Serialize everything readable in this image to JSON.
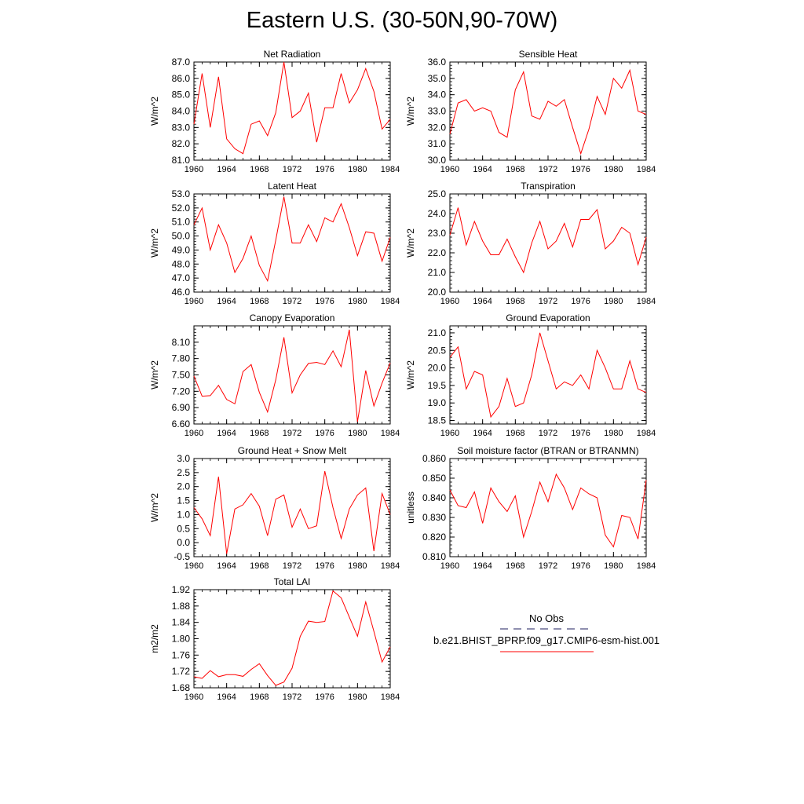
{
  "title": "Eastern U.S. (30-50N,90-70W)",
  "chart_data": [
    {
      "type": "line",
      "title": "Net Radiation",
      "ylabel": "W/m^2",
      "ylim": [
        81.0,
        87.0
      ],
      "yticks": [
        "81.0",
        "82.0",
        "83.0",
        "84.0",
        "85.0",
        "86.0",
        "87.0"
      ],
      "xlim": [
        1960,
        1984
      ],
      "xticks": [
        "1960",
        "1964",
        "1968",
        "1972",
        "1976",
        "1980",
        "1984"
      ],
      "series": [
        {
          "name": "b.e21.BHIST_BPRP.f09_g17.CMIP6-esm-hist.001",
          "color": "#ff0000",
          "x": [
            1960,
            1961,
            1962,
            1963,
            1964,
            1965,
            1966,
            1967,
            1968,
            1969,
            1970,
            1971,
            1972,
            1973,
            1974,
            1975,
            1976,
            1977,
            1978,
            1979,
            1980,
            1981,
            1982,
            1983,
            1984
          ],
          "y": [
            83.2,
            86.3,
            83.0,
            86.1,
            82.3,
            81.7,
            81.4,
            83.2,
            83.4,
            82.5,
            83.9,
            87.0,
            83.6,
            84.0,
            85.1,
            82.1,
            84.2,
            84.2,
            86.3,
            84.5,
            85.3,
            86.6,
            85.2,
            82.9,
            83.5
          ]
        }
      ]
    },
    {
      "type": "line",
      "title": "Sensible Heat",
      "ylabel": "W/m^2",
      "ylim": [
        30.0,
        36.0
      ],
      "yticks": [
        "30.0",
        "31.0",
        "32.0",
        "33.0",
        "34.0",
        "35.0",
        "36.0"
      ],
      "xlim": [
        1960,
        1984
      ],
      "xticks": [
        "1960",
        "1964",
        "1968",
        "1972",
        "1976",
        "1980",
        "1984"
      ],
      "series": [
        {
          "name": "b.e21.BHIST_BPRP.f09_g17.CMIP6-esm-hist.001",
          "color": "#ff0000",
          "x": [
            1960,
            1961,
            1962,
            1963,
            1964,
            1965,
            1966,
            1967,
            1968,
            1969,
            1970,
            1971,
            1972,
            1973,
            1974,
            1975,
            1976,
            1977,
            1978,
            1979,
            1980,
            1981,
            1982,
            1983,
            1984
          ],
          "y": [
            31.6,
            33.5,
            33.7,
            33.0,
            33.2,
            33.0,
            31.7,
            31.4,
            34.3,
            35.4,
            32.7,
            32.5,
            33.6,
            33.3,
            33.7,
            32.0,
            30.4,
            31.9,
            33.9,
            32.8,
            35.0,
            34.4,
            35.5,
            33.0,
            32.8
          ]
        }
      ]
    },
    {
      "type": "line",
      "title": "Latent Heat",
      "ylabel": "W/m^2",
      "ylim": [
        46.0,
        53.0
      ],
      "yticks": [
        "46.0",
        "47.0",
        "48.0",
        "49.0",
        "50.0",
        "51.0",
        "52.0",
        "53.0"
      ],
      "xlim": [
        1960,
        1984
      ],
      "xticks": [
        "1960",
        "1964",
        "1968",
        "1972",
        "1976",
        "1980",
        "1984"
      ],
      "series": [
        {
          "name": "b.e21.BHIST_BPRP.f09_g17.CMIP6-esm-hist.001",
          "color": "#ff0000",
          "x": [
            1960,
            1961,
            1962,
            1963,
            1964,
            1965,
            1966,
            1967,
            1968,
            1969,
            1970,
            1971,
            1972,
            1973,
            1974,
            1975,
            1976,
            1977,
            1978,
            1979,
            1980,
            1981,
            1982,
            1983,
            1984
          ],
          "y": [
            50.8,
            52.0,
            49.0,
            50.8,
            49.5,
            47.4,
            48.4,
            50.0,
            47.9,
            46.8,
            49.7,
            52.8,
            49.5,
            49.5,
            50.8,
            49.6,
            51.3,
            51.0,
            52.3,
            50.6,
            48.6,
            50.3,
            50.2,
            48.2,
            49.9
          ]
        }
      ]
    },
    {
      "type": "line",
      "title": "Transpiration",
      "ylabel": "W/m^2",
      "ylim": [
        20.0,
        25.0
      ],
      "yticks": [
        "20.0",
        "21.0",
        "22.0",
        "23.0",
        "24.0",
        "25.0"
      ],
      "xlim": [
        1960,
        1984
      ],
      "xticks": [
        "1960",
        "1964",
        "1968",
        "1972",
        "1976",
        "1980",
        "1984"
      ],
      "series": [
        {
          "name": "b.e21.BHIST_BPRP.f09_g17.CMIP6-esm-hist.001",
          "color": "#ff0000",
          "x": [
            1960,
            1961,
            1962,
            1963,
            1964,
            1965,
            1966,
            1967,
            1968,
            1969,
            1970,
            1971,
            1972,
            1973,
            1974,
            1975,
            1976,
            1977,
            1978,
            1979,
            1980,
            1981,
            1982,
            1983,
            1984
          ],
          "y": [
            22.9,
            24.3,
            22.4,
            23.6,
            22.6,
            21.9,
            21.9,
            22.7,
            21.8,
            21.0,
            22.5,
            23.6,
            22.2,
            22.6,
            23.5,
            22.3,
            23.7,
            23.7,
            24.2,
            22.2,
            22.6,
            23.3,
            23.0,
            21.4,
            22.8
          ]
        }
      ]
    },
    {
      "type": "line",
      "title": "Canopy Evaporation",
      "ylabel": "W/m^2",
      "ylim": [
        6.6,
        8.4
      ],
      "yticks": [
        "6.60",
        "6.90",
        "7.20",
        "7.50",
        "7.80",
        "8.10"
      ],
      "ytick_values": [
        6.6,
        6.9,
        7.2,
        7.5,
        7.8,
        8.1
      ],
      "xlim": [
        1960,
        1984
      ],
      "xticks": [
        "1960",
        "1964",
        "1968",
        "1972",
        "1976",
        "1980",
        "1984"
      ],
      "series": [
        {
          "name": "b.e21.BHIST_BPRP.f09_g17.CMIP6-esm-hist.001",
          "color": "#ff0000",
          "x": [
            1960,
            1961,
            1962,
            1963,
            1964,
            1965,
            1966,
            1967,
            1968,
            1969,
            1970,
            1971,
            1972,
            1973,
            1974,
            1975,
            1976,
            1977,
            1978,
            1979,
            1980,
            1981,
            1982,
            1983,
            1984
          ],
          "y": [
            7.48,
            7.11,
            7.12,
            7.31,
            7.05,
            6.97,
            7.56,
            7.69,
            7.18,
            6.82,
            7.41,
            8.19,
            7.17,
            7.5,
            7.71,
            7.73,
            7.69,
            7.94,
            7.65,
            8.33,
            6.64,
            7.58,
            6.93,
            7.35,
            7.72
          ]
        }
      ]
    },
    {
      "type": "line",
      "title": "Ground Evaporation",
      "ylabel": "W/m^2",
      "ylim": [
        18.4,
        21.2
      ],
      "yticks": [
        "18.5",
        "19.0",
        "19.5",
        "20.0",
        "20.5",
        "21.0"
      ],
      "ytick_values": [
        18.5,
        19.0,
        19.5,
        20.0,
        20.5,
        21.0
      ],
      "xlim": [
        1960,
        1984
      ],
      "xticks": [
        "1960",
        "1964",
        "1968",
        "1972",
        "1976",
        "1980",
        "1984"
      ],
      "series": [
        {
          "name": "b.e21.BHIST_BPRP.f09_g17.CMIP6-esm-hist.001",
          "color": "#ff0000",
          "x": [
            1960,
            1961,
            1962,
            1963,
            1964,
            1965,
            1966,
            1967,
            1968,
            1969,
            1970,
            1971,
            1972,
            1973,
            1974,
            1975,
            1976,
            1977,
            1978,
            1979,
            1980,
            1981,
            1982,
            1983,
            1984
          ],
          "y": [
            20.3,
            20.6,
            19.4,
            19.9,
            19.8,
            18.6,
            18.9,
            19.7,
            18.9,
            19.0,
            19.8,
            21.0,
            20.2,
            19.4,
            19.6,
            19.5,
            19.8,
            19.4,
            20.5,
            20.0,
            19.4,
            19.4,
            20.2,
            19.4,
            19.3
          ]
        }
      ]
    },
    {
      "type": "line",
      "title": "Ground Heat + Snow Melt",
      "ylabel": "W/m^2",
      "ylim": [
        -0.5,
        3.0
      ],
      "yticks": [
        "-0.5",
        "0.0",
        "0.5",
        "1.0",
        "1.5",
        "2.0",
        "2.5",
        "3.0"
      ],
      "xlim": [
        1960,
        1984
      ],
      "xticks": [
        "1960",
        "1964",
        "1968",
        "1972",
        "1976",
        "1980",
        "1984"
      ],
      "series": [
        {
          "name": "b.e21.BHIST_BPRP.f09_g17.CMIP6-esm-hist.001",
          "color": "#ff0000",
          "x": [
            1960,
            1961,
            1962,
            1963,
            1964,
            1965,
            1966,
            1967,
            1968,
            1969,
            1970,
            1971,
            1972,
            1973,
            1974,
            1975,
            1976,
            1977,
            1978,
            1979,
            1980,
            1981,
            1982,
            1983,
            1984
          ],
          "y": [
            1.25,
            0.85,
            0.25,
            2.35,
            -0.4,
            1.2,
            1.35,
            1.75,
            1.3,
            0.25,
            1.55,
            1.7,
            0.55,
            1.2,
            0.5,
            0.6,
            2.55,
            1.25,
            0.15,
            1.2,
            1.7,
            1.95,
            -0.3,
            1.75,
            1.0
          ]
        }
      ]
    },
    {
      "type": "line",
      "title": "Soil moisture factor (BTRAN or BTRANMN)",
      "ylabel": "unitless",
      "ylim": [
        0.81,
        0.86
      ],
      "yticks": [
        "0.810",
        "0.820",
        "0.830",
        "0.840",
        "0.850",
        "0.860"
      ],
      "xlim": [
        1960,
        1984
      ],
      "xticks": [
        "1960",
        "1964",
        "1968",
        "1972",
        "1976",
        "1980",
        "1984"
      ],
      "series": [
        {
          "name": "b.e21.BHIST_BPRP.f09_g17.CMIP6-esm-hist.001",
          "color": "#ff0000",
          "x": [
            1960,
            1961,
            1962,
            1963,
            1964,
            1965,
            1966,
            1967,
            1968,
            1969,
            1970,
            1971,
            1972,
            1973,
            1974,
            1975,
            1976,
            1977,
            1978,
            1979,
            1980,
            1981,
            1982,
            1983,
            1984
          ],
          "y": [
            0.844,
            0.836,
            0.835,
            0.843,
            0.827,
            0.845,
            0.838,
            0.833,
            0.841,
            0.82,
            0.833,
            0.848,
            0.838,
            0.852,
            0.845,
            0.834,
            0.845,
            0.842,
            0.84,
            0.821,
            0.815,
            0.831,
            0.83,
            0.819,
            0.849
          ]
        }
      ]
    },
    {
      "type": "line",
      "title": "Total LAI",
      "ylabel": "m2/m2",
      "ylim": [
        1.68,
        1.92
      ],
      "yticks": [
        "1.68",
        "1.72",
        "1.76",
        "1.80",
        "1.84",
        "1.88",
        "1.92"
      ],
      "xlim": [
        1960,
        1984
      ],
      "xticks": [
        "1960",
        "1964",
        "1968",
        "1972",
        "1976",
        "1980",
        "1984"
      ],
      "series": [
        {
          "name": "b.e21.BHIST_BPRP.f09_g17.CMIP6-esm-hist.001",
          "color": "#ff0000",
          "x": [
            1960,
            1961,
            1962,
            1963,
            1964,
            1965,
            1966,
            1967,
            1968,
            1969,
            1970,
            1971,
            1972,
            1973,
            1974,
            1975,
            1976,
            1977,
            1978,
            1979,
            1980,
            1981,
            1982,
            1983,
            1984
          ],
          "y": [
            1.707,
            1.703,
            1.722,
            1.707,
            1.712,
            1.712,
            1.708,
            1.725,
            1.739,
            1.71,
            1.686,
            1.694,
            1.728,
            1.806,
            1.843,
            1.84,
            1.842,
            1.917,
            1.9,
            1.853,
            1.806,
            1.89,
            1.818,
            1.743,
            1.78
          ]
        }
      ]
    }
  ],
  "legend": {
    "items": [
      {
        "label": "No Obs",
        "style": "dashed",
        "color": "#1f1f5f"
      },
      {
        "label": "b.e21.BHIST_BPRP.f09_g17.CMIP6-esm-hist.001",
        "style": "solid",
        "color": "#ff0000"
      }
    ]
  }
}
